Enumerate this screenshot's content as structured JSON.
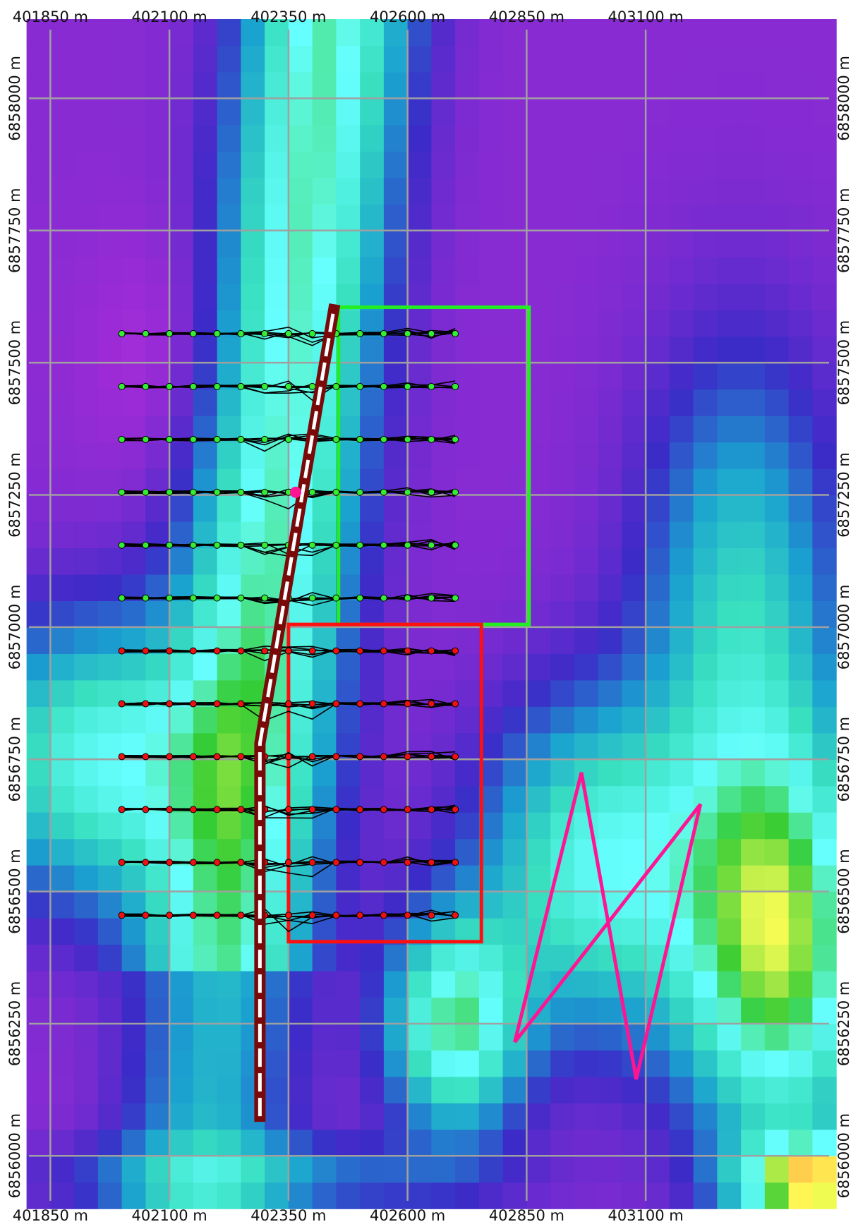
{
  "map": {
    "x_labels": [
      "401850 m",
      "402100 m",
      "402350 m",
      "402600 m",
      "402850 m",
      "403100 m"
    ],
    "y_labels": [
      "6858000 m",
      "6857750 m",
      "6857500 m",
      "6857250 m",
      "6857000 m",
      "6856750 m",
      "6856500 m",
      "6856250 m",
      "6856000 m"
    ],
    "x_range_m": [
      401805,
      403485
    ],
    "y_range_m": [
      6855915,
      6858130
    ],
    "grid_color": "#a0a0a0",
    "colormap": [
      "#ff66ff",
      "#9c2bd6",
      "#3b2bc8",
      "#1aa0d0",
      "#39e0c0",
      "#66ffff",
      "#33cc33",
      "#ffff55",
      "#ff9944",
      "#c01a1a",
      "#ffffff"
    ],
    "legend": "none"
  },
  "overlays": {
    "green_box": {
      "color": "#22ee22",
      "x_m": [
        402455,
        402855
      ],
      "y_m": [
        6857005,
        6857605
      ]
    },
    "red_box": {
      "color": "#ff1010",
      "x_m": [
        402350,
        402755
      ],
      "y_m": [
        6856405,
        6857005
      ]
    },
    "pink_polyline": {
      "color": "#ff1493",
      "points_m": [
        [
          402825,
          6856215
        ],
        [
          402965,
          6856725
        ],
        [
          403080,
          6856145
        ],
        [
          403215,
          6856665
        ],
        [
          402825,
          6856215
        ]
      ]
    },
    "traverse": {
      "outer_color": "#7a0a0a",
      "inner_color": "#ffffff",
      "points_m": [
        [
          402290,
          6856075
        ],
        [
          402290,
          6856780
        ],
        [
          402445,
          6857600
        ]
      ]
    },
    "pink_marker": {
      "color": "#ff1493",
      "point_m": [
        402365,
        6857255
      ]
    },
    "green_station_lines_y_m": [
      6857555,
      6857455,
      6857355,
      6857255,
      6857155,
      6857055
    ],
    "red_station_lines_y_m": [
      6856955,
      6856855,
      6856755,
      6856655,
      6856555,
      6856455
    ],
    "station_x_m": [
      402000,
      402050,
      402100,
      402150,
      402200,
      402250,
      402300,
      402350,
      402400,
      402450,
      402500,
      402550,
      402600,
      402650,
      402700
    ],
    "green_station_color": "#33ee33",
    "red_station_color": "#ee1111"
  }
}
